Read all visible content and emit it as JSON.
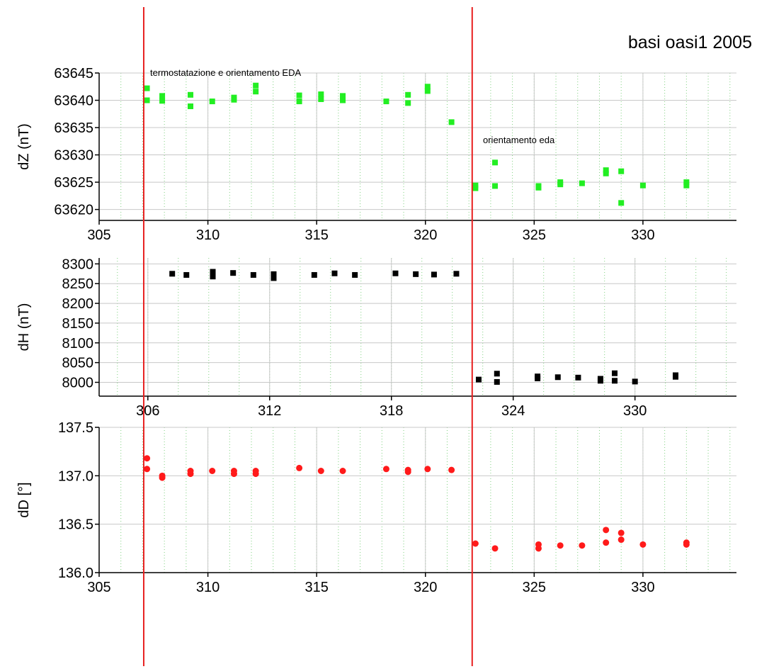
{
  "title": "basi oasi1 2005",
  "annotations": {
    "left_event": "termostatazione e orientamento EDA",
    "right_event": "orientamento eda"
  },
  "colors": {
    "dz_marker": "#22ee22",
    "dh_marker": "#000000",
    "dd_marker": "#ff1a1a",
    "event_line": "#e82020",
    "grid": "#c8c8c8",
    "minor_grid": "#7fd07f"
  },
  "chart_data": [
    {
      "type": "scatter",
      "panel": "dZ",
      "ylabel": "dZ (nT)",
      "xlim": [
        305,
        334.3
      ],
      "ylim": [
        63618,
        63645
      ],
      "xticks": [
        305,
        310,
        315,
        320,
        325,
        330
      ],
      "yticks": [
        63620,
        63625,
        63630,
        63635,
        63640,
        63645
      ],
      "marker": "square",
      "points": [
        {
          "x": 307.2,
          "y": 63642.2
        },
        {
          "x": 307.2,
          "y": 63640.0
        },
        {
          "x": 307.9,
          "y": 63640.8
        },
        {
          "x": 307.9,
          "y": 63639.9
        },
        {
          "x": 309.2,
          "y": 63641.0
        },
        {
          "x": 309.2,
          "y": 63638.9
        },
        {
          "x": 310.2,
          "y": 63639.8
        },
        {
          "x": 311.2,
          "y": 63640.5
        },
        {
          "x": 311.2,
          "y": 63640.1
        },
        {
          "x": 312.2,
          "y": 63642.7
        },
        {
          "x": 312.2,
          "y": 63641.6
        },
        {
          "x": 314.2,
          "y": 63640.9
        },
        {
          "x": 314.2,
          "y": 63639.8
        },
        {
          "x": 315.2,
          "y": 63641.1
        },
        {
          "x": 315.2,
          "y": 63640.2
        },
        {
          "x": 316.2,
          "y": 63640.8
        },
        {
          "x": 316.2,
          "y": 63640.0
        },
        {
          "x": 318.2,
          "y": 63639.8
        },
        {
          "x": 319.2,
          "y": 63641.0
        },
        {
          "x": 319.2,
          "y": 63639.5
        },
        {
          "x": 320.1,
          "y": 63642.5
        },
        {
          "x": 320.1,
          "y": 63641.7
        },
        {
          "x": 321.2,
          "y": 63636.0
        },
        {
          "x": 322.3,
          "y": 63624.4
        },
        {
          "x": 322.3,
          "y": 63623.9
        },
        {
          "x": 323.2,
          "y": 63628.6
        },
        {
          "x": 323.2,
          "y": 63624.3
        },
        {
          "x": 325.2,
          "y": 63624.3
        },
        {
          "x": 325.2,
          "y": 63624.0
        },
        {
          "x": 326.2,
          "y": 63625.0
        },
        {
          "x": 326.2,
          "y": 63624.6
        },
        {
          "x": 327.2,
          "y": 63624.8
        },
        {
          "x": 328.3,
          "y": 63627.2
        },
        {
          "x": 328.3,
          "y": 63626.6
        },
        {
          "x": 329.0,
          "y": 63627.0
        },
        {
          "x": 329.0,
          "y": 63621.2
        },
        {
          "x": 330.0,
          "y": 63624.4
        },
        {
          "x": 332.0,
          "y": 63625.0
        },
        {
          "x": 332.0,
          "y": 63624.4
        }
      ]
    },
    {
      "type": "scatter",
      "panel": "dH",
      "ylabel": "dH (nT)",
      "xlim": [
        303.6,
        335.0
      ],
      "ylim": [
        7965,
        8315
      ],
      "xticks": [
        306,
        312,
        318,
        324,
        330
      ],
      "yticks": [
        8000,
        8050,
        8100,
        8150,
        8200,
        8250,
        8300
      ],
      "marker": "square",
      "points": [
        {
          "x": 307.2,
          "y": 8275
        },
        {
          "x": 307.9,
          "y": 8272
        },
        {
          "x": 309.2,
          "y": 8280
        },
        {
          "x": 309.2,
          "y": 8268
        },
        {
          "x": 310.2,
          "y": 8277
        },
        {
          "x": 311.2,
          "y": 8272
        },
        {
          "x": 312.2,
          "y": 8274
        },
        {
          "x": 312.2,
          "y": 8264
        },
        {
          "x": 314.2,
          "y": 8272
        },
        {
          "x": 315.2,
          "y": 8276
        },
        {
          "x": 316.2,
          "y": 8272
        },
        {
          "x": 318.2,
          "y": 8276
        },
        {
          "x": 319.2,
          "y": 8274
        },
        {
          "x": 320.1,
          "y": 8273
        },
        {
          "x": 321.2,
          "y": 8275
        },
        {
          "x": 322.3,
          "y": 8007
        },
        {
          "x": 323.2,
          "y": 8022
        },
        {
          "x": 323.2,
          "y": 8001
        },
        {
          "x": 325.2,
          "y": 8015
        },
        {
          "x": 325.2,
          "y": 8010
        },
        {
          "x": 326.2,
          "y": 8013
        },
        {
          "x": 327.2,
          "y": 8012
        },
        {
          "x": 328.3,
          "y": 8009
        },
        {
          "x": 328.3,
          "y": 8004
        },
        {
          "x": 329.0,
          "y": 8023
        },
        {
          "x": 329.0,
          "y": 8004
        },
        {
          "x": 330.0,
          "y": 8002
        },
        {
          "x": 332.0,
          "y": 8018
        },
        {
          "x": 332.0,
          "y": 8014
        }
      ]
    },
    {
      "type": "scatter",
      "panel": "dD",
      "ylabel": "dD [°]",
      "xlim": [
        305,
        334.3
      ],
      "ylim": [
        136.0,
        137.5
      ],
      "xticks": [
        305,
        310,
        315,
        320,
        325,
        330
      ],
      "yticks": [
        136.0,
        136.5,
        137.0,
        137.5
      ],
      "marker": "circle",
      "points": [
        {
          "x": 307.2,
          "y": 137.18
        },
        {
          "x": 307.2,
          "y": 137.07
        },
        {
          "x": 307.9,
          "y": 137.0
        },
        {
          "x": 307.9,
          "y": 136.98
        },
        {
          "x": 309.2,
          "y": 137.05
        },
        {
          "x": 309.2,
          "y": 137.02
        },
        {
          "x": 310.2,
          "y": 137.05
        },
        {
          "x": 311.2,
          "y": 137.05
        },
        {
          "x": 311.2,
          "y": 137.02
        },
        {
          "x": 312.2,
          "y": 137.05
        },
        {
          "x": 312.2,
          "y": 137.02
        },
        {
          "x": 314.2,
          "y": 137.08
        },
        {
          "x": 315.2,
          "y": 137.05
        },
        {
          "x": 316.2,
          "y": 137.05
        },
        {
          "x": 318.2,
          "y": 137.07
        },
        {
          "x": 319.2,
          "y": 137.06
        },
        {
          "x": 319.2,
          "y": 137.04
        },
        {
          "x": 320.1,
          "y": 137.07
        },
        {
          "x": 321.2,
          "y": 137.06
        },
        {
          "x": 322.3,
          "y": 136.3
        },
        {
          "x": 323.2,
          "y": 136.25
        },
        {
          "x": 325.2,
          "y": 136.29
        },
        {
          "x": 325.2,
          "y": 136.25
        },
        {
          "x": 326.2,
          "y": 136.28
        },
        {
          "x": 327.2,
          "y": 136.28
        },
        {
          "x": 328.3,
          "y": 136.44
        },
        {
          "x": 328.3,
          "y": 136.31
        },
        {
          "x": 329.0,
          "y": 136.41
        },
        {
          "x": 329.0,
          "y": 136.34
        },
        {
          "x": 330.0,
          "y": 136.29
        },
        {
          "x": 332.0,
          "y": 136.31
        },
        {
          "x": 332.0,
          "y": 136.29
        }
      ]
    }
  ]
}
